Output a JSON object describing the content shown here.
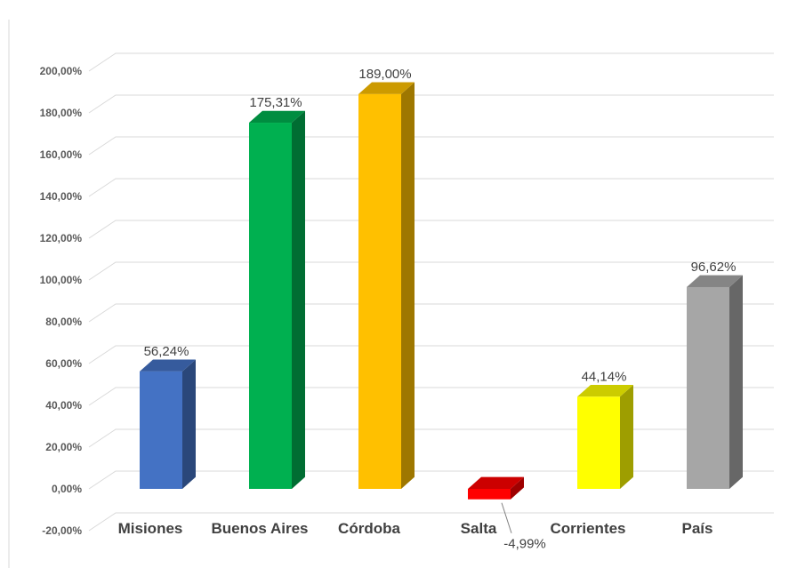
{
  "chart_data": {
    "type": "bar",
    "categories": [
      "Misiones",
      "Buenos Aires",
      "Córdoba",
      "Salta",
      "Corrientes",
      "País"
    ],
    "values": [
      56.24,
      175.31,
      189.0,
      -4.99,
      44.14,
      96.62
    ],
    "data_labels": [
      "56,24%",
      "175,31%",
      "189,00%",
      "-4,99%",
      "44,14%",
      "96,62%"
    ],
    "colors": [
      "#4472C4",
      "#00B050",
      "#FFC000",
      "#FF0000",
      "#FFFF00",
      "#A6A6A6"
    ],
    "ylim": [
      -20,
      200
    ],
    "y_ticks": [
      200,
      180,
      160,
      140,
      120,
      100,
      80,
      60,
      40,
      20,
      0,
      -20
    ],
    "y_tick_labels": [
      "200,00%",
      "180,00%",
      "160,00%",
      "140,00%",
      "120,00%",
      "100,00%",
      "80,00%",
      "60,00%",
      "40,00%",
      "20,00%",
      "0,00%",
      "-20,00%"
    ],
    "grid": true,
    "style": "3d-column"
  }
}
